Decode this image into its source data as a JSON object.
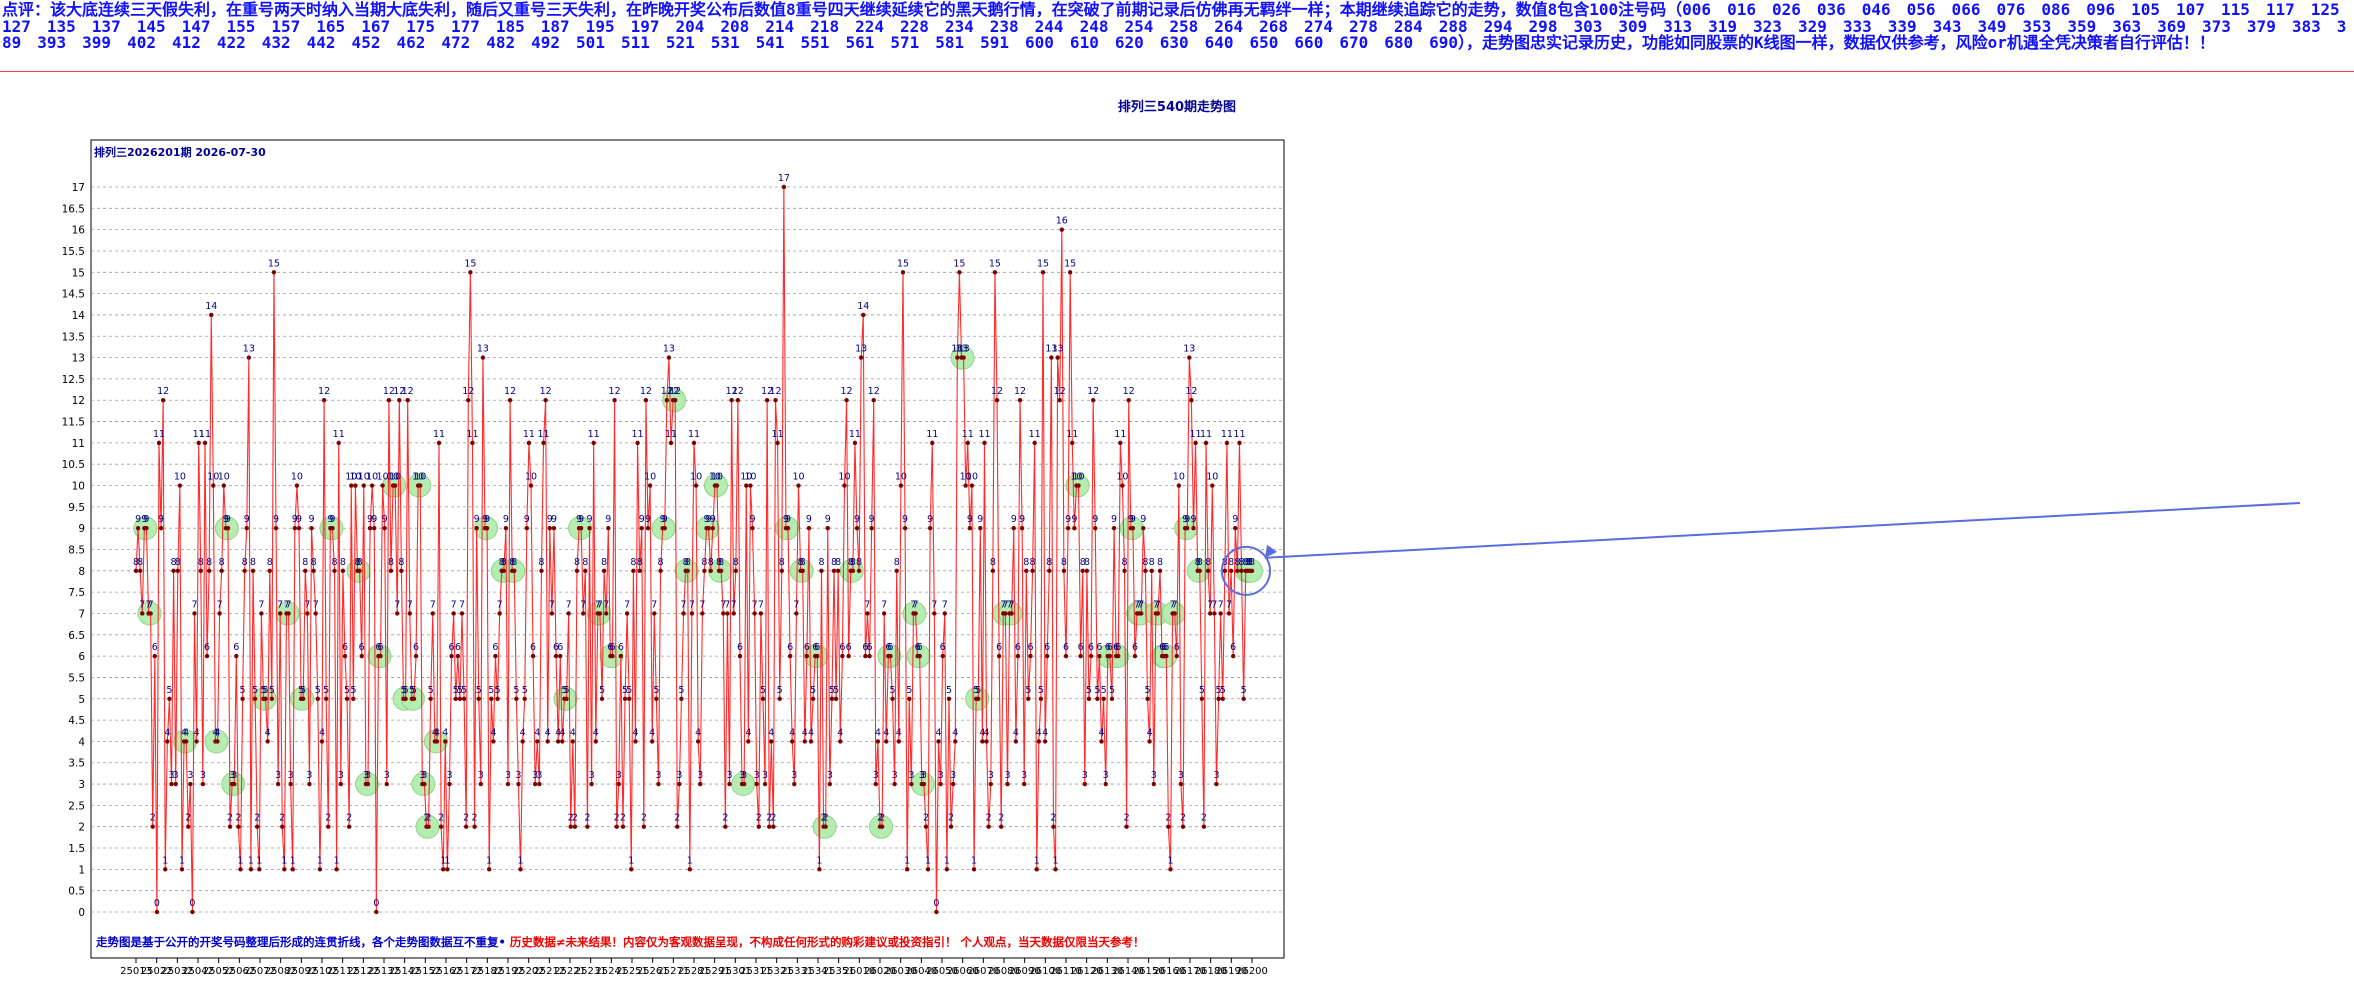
{
  "header": {
    "comment": "点评：该大底连续三天假失利，在重号两天时纳入当期大底失利，随后又重号三天失利，在昨晚开奖公布后数值8重号四天继续延续它的黑天鹅行情，在突破了前期记录后仿佛再无羁绊一样；本期继续追踪它的走势，数值8包含100注号码（006　016　026　036　046　056　066　076　086　096　105　107　115　117　125　127　135　137　145　147　155　157　165　167　175　177　185　187　195　197　204　208　214　218　224　228　234　238　244　248　254　258　264　268　274　278　284　288　294　298　303　309　313　319　323　329　333　339　343　349　353　359　363　369　373　379　383　389　393　399　402　412　422　432　442　452　462　472　482　492　501　511　521　531　541　551　561　571　581　591　600　610　620　630　640　650　660　670　680　690），走势图忠实记录历史，功能如同股票的K线图一样，数据仅供参考，风险or机遇全凭决策者自行评估！！"
  },
  "chart_data": {
    "type": "line",
    "title": "排列三540期走势图",
    "subtitle": "排列三2026201期 2026-07-30",
    "yticks": [
      "0",
      "0.5",
      "1",
      "1.5",
      "2",
      "2.5",
      "3",
      "3.5",
      "4",
      "4.5",
      "5",
      "5.5",
      "6",
      "6.5",
      "7",
      "7.5",
      "8",
      "8.5",
      "9",
      "9.5",
      "10",
      "10.5",
      "11",
      "11.5",
      "12",
      "12.5",
      "13",
      "13.5",
      "14",
      "14.5",
      "15",
      "15.5",
      "16",
      "16.5",
      "17"
    ],
    "ylim": [
      0,
      17
    ],
    "xtick_labels": [
      "25013",
      "25022",
      "25032",
      "25042",
      "25052",
      "25062",
      "25072",
      "25082",
      "25092",
      "25102",
      "25112",
      "25122",
      "25132",
      "25142",
      "25152",
      "25162",
      "25172",
      "25182",
      "25192",
      "25202",
      "25212",
      "25221",
      "25231",
      "25241",
      "25251",
      "25261",
      "25271",
      "25281",
      "25291",
      "25301",
      "25311",
      "25321",
      "25331",
      "25341",
      "25351",
      "26010",
      "26020",
      "26030",
      "26040",
      "26050",
      "26060",
      "26070",
      "26080",
      "26090",
      "26100",
      "26110",
      "26120",
      "26130",
      "26140",
      "26150",
      "26160",
      "26170",
      "26180",
      "26190",
      "26200"
    ],
    "series": [
      {
        "values": [
          8,
          9,
          8,
          7,
          9,
          9,
          7,
          7,
          2,
          6,
          0,
          11,
          9,
          12,
          1,
          4,
          5,
          3,
          8,
          3,
          8,
          10,
          1,
          4,
          4,
          2,
          3,
          0,
          7,
          4,
          11,
          8,
          3,
          11,
          6,
          8,
          14,
          10,
          4,
          4,
          7,
          8,
          10,
          9,
          9,
          2,
          3,
          3,
          6,
          2,
          1,
          5,
          8,
          9,
          13,
          1,
          8,
          5,
          2,
          1,
          7,
          5,
          5,
          4,
          8,
          5,
          15,
          9,
          3,
          7,
          2,
          1,
          7,
          7,
          3,
          1,
          9,
          10,
          9,
          5,
          5,
          8,
          7,
          3,
          9,
          8,
          7,
          5,
          1,
          4,
          12,
          5,
          2,
          9,
          9,
          8,
          1,
          11,
          3,
          8,
          6,
          5,
          2,
          10,
          5,
          10,
          8,
          8,
          6,
          10,
          3,
          3,
          9,
          10,
          9,
          0,
          6,
          6,
          10,
          9,
          3,
          12,
          8,
          10,
          10,
          7,
          12,
          8,
          5,
          5,
          12,
          7,
          5,
          5,
          6,
          10,
          10,
          3,
          3,
          2,
          2,
          5,
          7,
          4,
          4,
          11,
          2,
          1,
          4,
          1,
          3,
          6,
          7,
          5,
          6,
          5,
          7,
          5,
          2,
          12,
          15,
          11,
          2,
          9,
          5,
          3,
          13,
          9,
          9,
          1,
          5,
          4,
          6,
          5,
          7,
          8,
          8,
          9,
          3,
          12,
          8,
          8,
          5,
          3,
          1,
          4,
          5,
          9,
          11,
          10,
          6,
          3,
          4,
          3,
          8,
          11,
          12,
          4,
          9,
          7,
          9,
          6,
          4,
          6,
          4,
          5,
          5,
          7,
          2,
          4,
          2,
          8,
          9,
          9,
          7,
          8,
          2,
          9,
          3,
          11,
          4,
          7,
          7,
          5,
          8,
          7,
          9,
          6,
          6,
          12,
          2,
          3,
          6,
          2,
          5,
          7,
          5,
          1,
          8,
          4,
          11,
          8,
          9,
          2,
          12,
          9,
          10,
          4,
          7,
          5,
          3,
          8,
          9,
          9,
          12,
          13,
          11,
          12,
          12,
          2,
          3,
          5,
          7,
          8,
          8,
          1,
          7,
          11,
          10,
          4,
          3,
          7,
          8,
          9,
          9,
          8,
          9,
          10,
          10,
          8,
          8,
          7,
          2,
          7,
          3,
          12,
          7,
          8,
          12,
          6,
          3,
          3,
          10,
          4,
          10,
          9,
          7,
          3,
          2,
          7,
          5,
          3,
          12,
          2,
          4,
          2,
          12,
          11,
          5,
          8,
          17,
          9,
          9,
          6,
          4,
          3,
          7,
          10,
          8,
          8,
          4,
          6,
          9,
          4,
          5,
          6,
          6,
          1,
          8,
          2,
          2,
          9,
          3,
          5,
          8,
          5,
          8,
          4,
          6,
          10,
          12,
          6,
          8,
          8,
          11,
          9,
          8,
          13,
          14,
          6,
          7,
          6,
          9,
          12,
          3,
          4,
          2,
          2,
          7,
          4,
          6,
          6,
          5,
          3,
          8,
          4,
          10,
          15,
          9,
          1,
          5,
          3,
          7,
          7,
          6,
          6,
          3,
          3,
          2,
          1,
          9,
          11,
          7,
          0,
          4,
          3,
          6,
          7,
          1,
          5,
          2,
          3,
          4,
          13,
          15,
          13,
          13,
          10,
          11,
          9,
          10,
          1,
          5,
          5,
          9,
          4,
          11,
          4,
          2,
          3,
          8,
          15,
          12,
          6,
          2,
          7,
          7,
          3,
          7,
          7,
          9,
          4,
          6,
          12,
          9,
          3,
          8,
          5,
          6,
          8,
          11,
          1,
          4,
          5,
          15,
          4,
          6,
          8,
          13,
          2,
          1,
          13,
          12,
          16,
          8,
          6,
          9,
          15,
          11,
          9,
          10,
          10,
          6,
          8,
          3,
          8,
          5,
          6,
          12,
          9,
          5,
          6,
          4,
          5,
          3,
          6,
          6,
          5,
          9,
          6,
          6,
          11,
          10,
          8,
          2,
          12,
          9,
          9,
          6,
          7,
          7,
          7,
          9,
          8,
          5,
          4,
          8,
          3,
          7,
          7,
          8,
          6,
          6,
          6,
          2,
          1,
          7,
          7,
          6,
          10,
          3,
          2,
          9,
          9,
          13,
          12,
          9,
          11,
          8,
          8,
          5,
          2,
          11,
          8,
          7,
          10,
          7,
          3,
          5,
          7,
          5,
          8,
          11,
          7,
          8,
          6,
          9,
          8,
          11,
          8,
          5,
          8,
          8,
          8,
          8
        ]
      }
    ],
    "highlight_value": 8,
    "footnote": {
      "part1": "走势图是基于公开的开奖号码整理后形成的连贯折线，各个走势图数据互不重复•",
      "part2": "历史数据≠未来结果！内容仅为客观数据呈现，不构成任何形式的购彩建议或投资指引！",
      "part3": "个人观点，当天数据仅限当天参考！"
    },
    "colors": {
      "line": "#ff2b2b",
      "point": "#800000",
      "label": "#000080",
      "highlight": "#b5ecb0",
      "circle": "#5a6de0",
      "title": "#000099",
      "footnote_blue": "#0000cc",
      "footnote_red": "#ee0000"
    },
    "grid": true
  }
}
